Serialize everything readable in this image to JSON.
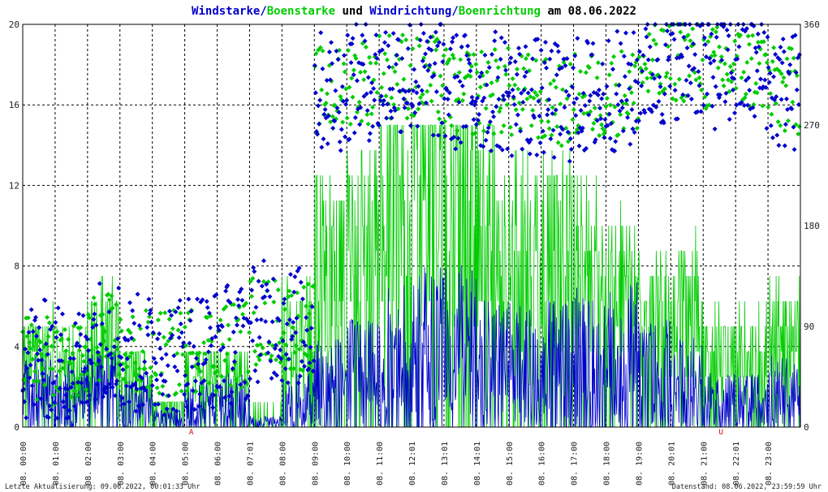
{
  "title": {
    "part1": "Windstarke/",
    "part2": "Boenstarke",
    "part3": " und ",
    "part4": "Windrichtung/",
    "part5": "Boenrichtung",
    "part6": " am 08.06.2022"
  },
  "footer": {
    "left": "Letzte Aktualisierung: 09.06.2022, 00:01:33 Uhr",
    "right": "Datenstand: 08.06.2022, 23:59:59 Uhr"
  },
  "colors": {
    "wind": "#0000cc",
    "gust": "#00cc00",
    "grid": "#000000",
    "marker": "#cc0000"
  },
  "chart_data": {
    "type": "line",
    "x_range_hours": [
      0,
      24
    ],
    "ylim_left": [
      0,
      20
    ],
    "ylim_right": [
      0,
      360
    ],
    "left_ticks": [
      "0",
      "4",
      "8",
      "12",
      "16",
      "20"
    ],
    "right_ticks": [
      "0",
      "90",
      "180",
      "270",
      "360"
    ],
    "x_ticks": [
      "08. 00:00",
      "08. 01:00",
      "08. 02:00",
      "08. 03:00",
      "08. 04:00",
      "08. 05:00",
      "08. 06:00",
      "08. 07:01",
      "08. 08:00",
      "08. 09:00",
      "08. 10:00",
      "08. 11:00",
      "08. 12:01",
      "08. 13:01",
      "08. 14:01",
      "08. 15:00",
      "08. 16:00",
      "08. 17:00",
      "08. 18:00",
      "08. 19:00",
      "08. 20:01",
      "08. 21:00",
      "08. 22:01",
      "08. 23:00"
    ],
    "markers": [
      {
        "label": "A",
        "hour": 5.2
      },
      {
        "label": "U",
        "hour": 21.55
      }
    ],
    "grid": true,
    "series": [
      {
        "name": "Windstarke",
        "kind": "line",
        "axis": "left",
        "hourly_level": [
          2.0,
          1.8,
          2.2,
          1.5,
          0.5,
          1.2,
          1.5,
          0.3,
          1.5,
          2.5,
          3.0,
          4.0,
          4.5,
          4.5,
          3.5,
          3.5,
          3.5,
          4.0,
          4.0,
          3.0,
          2.5,
          1.5,
          1.5,
          2.0
        ]
      },
      {
        "name": "Boenstarke",
        "kind": "line",
        "axis": "left",
        "hourly_level": [
          4.0,
          3.5,
          5.0,
          3.0,
          1.0,
          3.0,
          3.0,
          0.5,
          5.0,
          9.0,
          10.0,
          12.0,
          14.0,
          13.0,
          11.0,
          10.0,
          10.0,
          9.0,
          7.5,
          6.0,
          6.5,
          4.0,
          4.0,
          5.0
        ]
      },
      {
        "name": "Windrichtung",
        "kind": "scatter",
        "axis": "right",
        "hourly_level": [
          60,
          55,
          80,
          65,
          65,
          70,
          75,
          95,
          90,
          300,
          310,
          315,
          310,
          300,
          300,
          295,
          290,
          295,
          300,
          320,
          330,
          320,
          320,
          300
        ]
      },
      {
        "name": "Boenrichtung",
        "kind": "scatter",
        "axis": "right",
        "hourly_level": [
          60,
          55,
          80,
          65,
          65,
          70,
          75,
          95,
          90,
          300,
          310,
          315,
          310,
          300,
          300,
          295,
          290,
          295,
          300,
          320,
          330,
          320,
          320,
          300
        ]
      }
    ]
  }
}
